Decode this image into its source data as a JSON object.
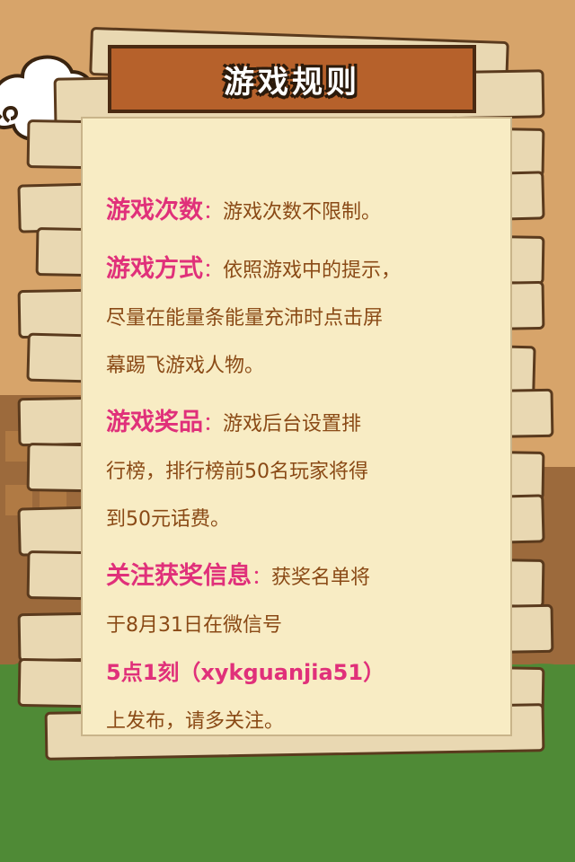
{
  "screen": {
    "title": "游戏规则",
    "colors": {
      "label": "#e0307a",
      "text": "#8a4a16",
      "banner": "#b6612b",
      "paper": "#f8ecc4",
      "ground": "#4f8a36",
      "sky": "#d7a46a"
    }
  },
  "rules": [
    {
      "label": "游戏次数",
      "sep": "：",
      "lines": [
        "游戏次数不限制。"
      ]
    },
    {
      "label": "游戏方式",
      "sep": "：",
      "lines": [
        "依照游戏中的提示，",
        "尽量在能量条能量充沛时点击屏",
        "幕踢飞游戏人物。"
      ]
    },
    {
      "label": "游戏奖品",
      "sep": "：",
      "lines": [
        "游戏后台设置排",
        "行榜，排行榜前50名玩家将得",
        "到50元话费。"
      ]
    },
    {
      "label": "关注获奖信息",
      "sep": "：",
      "lines": [
        "获奖名单将",
        "于8月31日在微信号"
      ]
    }
  ],
  "wechat": {
    "account": "5点1刻（xykguanjia51）",
    "suffix": "上发布，请多关注。"
  }
}
